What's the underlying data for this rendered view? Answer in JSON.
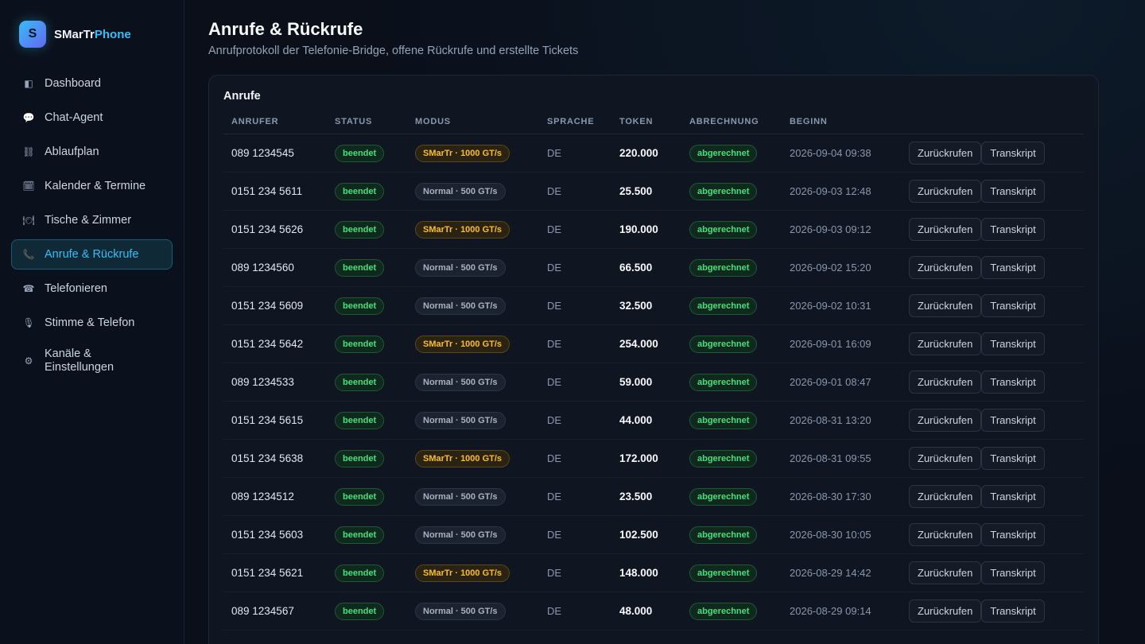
{
  "brand": {
    "logo_letter": "S",
    "name_prefix": "SMarTr",
    "name_accent": "Phone"
  },
  "sidebar": {
    "items": [
      {
        "label": "Dashboard",
        "icon": "◧",
        "active": false
      },
      {
        "label": "Chat-Agent",
        "icon": "💬",
        "active": false
      },
      {
        "label": "Ablaufplan",
        "icon": "⛓",
        "active": false
      },
      {
        "label": "Kalender & Termine",
        "icon": "🗓",
        "active": false
      },
      {
        "label": "Tische & Zimmer",
        "icon": "🍽",
        "active": false
      },
      {
        "label": "Anrufe & Rückrufe",
        "icon": "📞",
        "active": true
      },
      {
        "label": "Telefonieren",
        "icon": "☎",
        "active": false
      },
      {
        "label": "Stimme & Telefon",
        "icon": "🎙",
        "active": false
      },
      {
        "label": "Kanäle & Einstellungen",
        "icon": "⚙",
        "active": false
      }
    ]
  },
  "header": {
    "title": "Anrufe & Rückrufe",
    "subtitle": "Anrufprotokoll der Telefonie-Bridge, offene Rückrufe und erstellte Tickets"
  },
  "calls": {
    "title": "Anrufe",
    "columns": [
      "ANRUFER",
      "STATUS",
      "MODUS",
      "SPRACHE",
      "TOKEN",
      "ABRECHNUNG",
      "BEGINN",
      ""
    ],
    "actions": {
      "callback_label": "Zurückrufen",
      "transcript_label": "Transkript"
    },
    "rows": [
      {
        "caller": "089 1234545",
        "status": "beendet",
        "mode": "SMarTr · 1000 GT/s",
        "mode_type": "smartr",
        "language": "DE",
        "tokens": "220.000",
        "billing": "abgerechnet",
        "start": "2026-09-04 09:38"
      },
      {
        "caller": "0151 234 5611",
        "status": "beendet",
        "mode": "Normal · 500 GT/s",
        "mode_type": "normal",
        "language": "DE",
        "tokens": "25.500",
        "billing": "abgerechnet",
        "start": "2026-09-03 12:48"
      },
      {
        "caller": "0151 234 5626",
        "status": "beendet",
        "mode": "SMarTr · 1000 GT/s",
        "mode_type": "smartr",
        "language": "DE",
        "tokens": "190.000",
        "billing": "abgerechnet",
        "start": "2026-09-03 09:12"
      },
      {
        "caller": "089 1234560",
        "status": "beendet",
        "mode": "Normal · 500 GT/s",
        "mode_type": "normal",
        "language": "DE",
        "tokens": "66.500",
        "billing": "abgerechnet",
        "start": "2026-09-02 15:20"
      },
      {
        "caller": "0151 234 5609",
        "status": "beendet",
        "mode": "Normal · 500 GT/s",
        "mode_type": "normal",
        "language": "DE",
        "tokens": "32.500",
        "billing": "abgerechnet",
        "start": "2026-09-02 10:31"
      },
      {
        "caller": "0151 234 5642",
        "status": "beendet",
        "mode": "SMarTr · 1000 GT/s",
        "mode_type": "smartr",
        "language": "DE",
        "tokens": "254.000",
        "billing": "abgerechnet",
        "start": "2026-09-01 16:09"
      },
      {
        "caller": "089 1234533",
        "status": "beendet",
        "mode": "Normal · 500 GT/s",
        "mode_type": "normal",
        "language": "DE",
        "tokens": "59.000",
        "billing": "abgerechnet",
        "start": "2026-09-01 08:47"
      },
      {
        "caller": "0151 234 5615",
        "status": "beendet",
        "mode": "Normal · 500 GT/s",
        "mode_type": "normal",
        "language": "DE",
        "tokens": "44.000",
        "billing": "abgerechnet",
        "start": "2026-08-31 13:20"
      },
      {
        "caller": "0151 234 5638",
        "status": "beendet",
        "mode": "SMarTr · 1000 GT/s",
        "mode_type": "smartr",
        "language": "DE",
        "tokens": "172.000",
        "billing": "abgerechnet",
        "start": "2026-08-31 09:55"
      },
      {
        "caller": "089 1234512",
        "status": "beendet",
        "mode": "Normal · 500 GT/s",
        "mode_type": "normal",
        "language": "DE",
        "tokens": "23.500",
        "billing": "abgerechnet",
        "start": "2026-08-30 17:30"
      },
      {
        "caller": "0151 234 5603",
        "status": "beendet",
        "mode": "Normal · 500 GT/s",
        "mode_type": "normal",
        "language": "DE",
        "tokens": "102.500",
        "billing": "abgerechnet",
        "start": "2026-08-30 10:05"
      },
      {
        "caller": "0151 234 5621",
        "status": "beendet",
        "mode": "SMarTr · 1000 GT/s",
        "mode_type": "smartr",
        "language": "DE",
        "tokens": "148.000",
        "billing": "abgerechnet",
        "start": "2026-08-29 14:42"
      },
      {
        "caller": "089 1234567",
        "status": "beendet",
        "mode": "Normal · 500 GT/s",
        "mode_type": "normal",
        "language": "DE",
        "tokens": "48.000",
        "billing": "abgerechnet",
        "start": "2026-08-29 09:14"
      }
    ]
  }
}
